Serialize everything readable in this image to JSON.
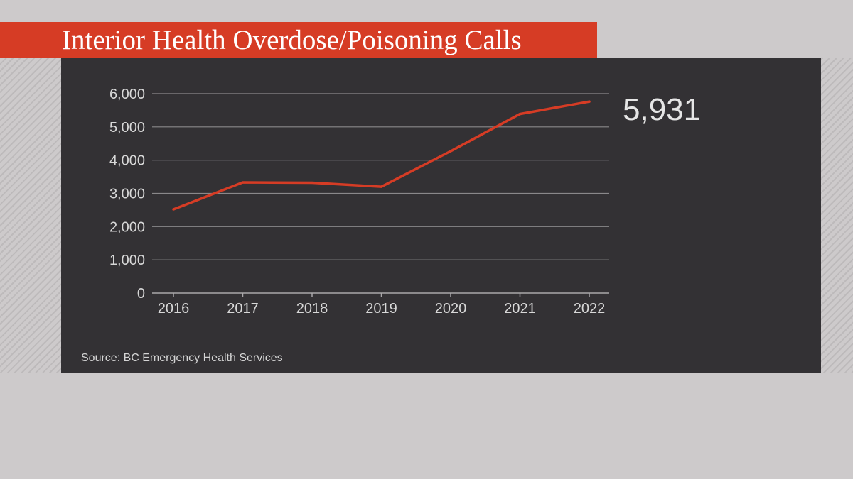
{
  "chart_data": {
    "type": "line",
    "title": "Interior Health Overdose/Poisoning Calls",
    "x": [
      "2016",
      "2017",
      "2018",
      "2019",
      "2020",
      "2021",
      "2022"
    ],
    "series": [
      {
        "values": [
          2520,
          3330,
          3320,
          3200,
          4270,
          5390,
          5760
        ],
        "color": "#d63c25"
      }
    ],
    "y_ticks": [
      "0",
      "1,000",
      "2,000",
      "3,000",
      "4,000",
      "5,000",
      "6,000"
    ],
    "ylim": [
      0,
      6000
    ],
    "grid": "horizontal",
    "callout": "5,931",
    "source": "Source: BC Emergency Health Services",
    "xlabel": "",
    "ylabel": ""
  },
  "colors": {
    "accent": "#d63c25",
    "panel": "#333134",
    "background": "#cdcacb",
    "gridline": "#8a888a",
    "text": "#e6e6e6"
  }
}
